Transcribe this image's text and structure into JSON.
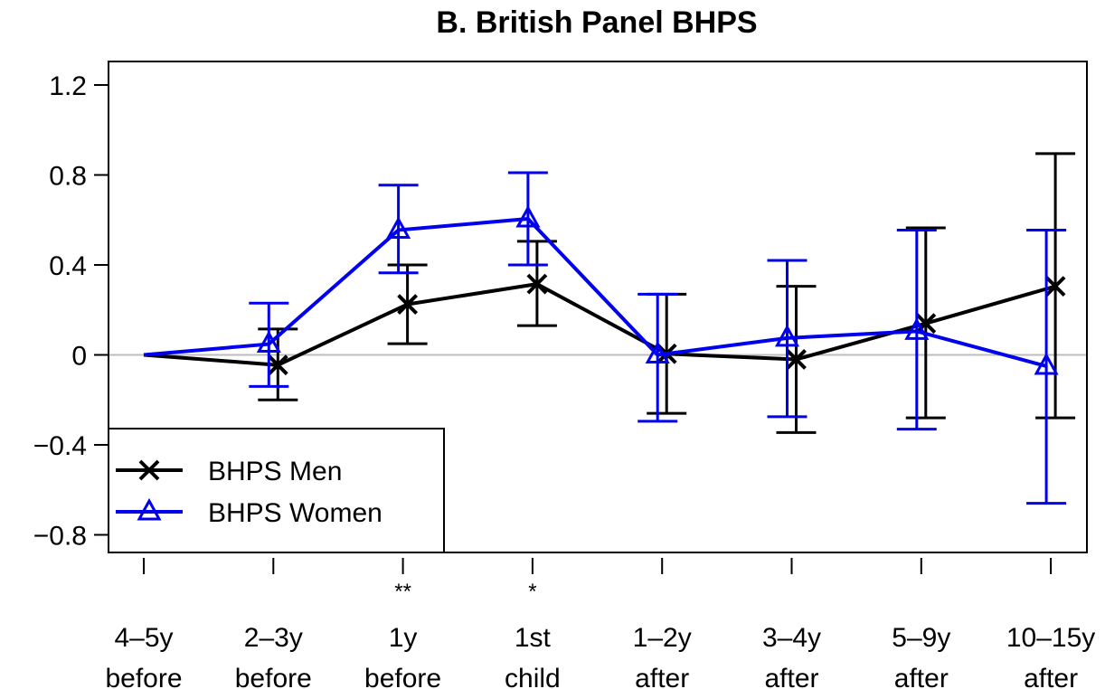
{
  "chart_data": {
    "type": "line",
    "title": "B. British Panel BHPS",
    "xlabel": "",
    "ylabel": "",
    "categories": [
      [
        "4–5y",
        "before"
      ],
      [
        "2–3y",
        "before"
      ],
      [
        "1y",
        "before"
      ],
      [
        "1st",
        "child"
      ],
      [
        "1–2y",
        "after"
      ],
      [
        "3–4y",
        "after"
      ],
      [
        "5–9y",
        "after"
      ],
      [
        "10–15y",
        "after"
      ]
    ],
    "significance": [
      "",
      "",
      "**",
      "*",
      "",
      "",
      "",
      ""
    ],
    "ylim": [
      -0.88,
      1.3
    ],
    "yticks": [
      {
        "value": 1.2,
        "label": "1.2"
      },
      {
        "value": 0.8,
        "label": "0.8"
      },
      {
        "value": 0.4,
        "label": "0.4"
      },
      {
        "value": 0,
        "label": "0"
      },
      {
        "value": -0.4,
        "label": "−0.4"
      },
      {
        "value": -0.8,
        "label": "−0.8"
      }
    ],
    "reference_line": 0,
    "grid": false,
    "legend_position": "bottom-left",
    "series": [
      {
        "name": "BHPS Men",
        "color": "#000000",
        "marker": "x",
        "values": [
          0,
          -0.045,
          0.225,
          0.315,
          0.005,
          -0.02,
          0.14,
          0.305
        ],
        "ci_low": [
          null,
          -0.2,
          0.05,
          0.13,
          -0.26,
          -0.345,
          -0.28,
          -0.28
        ],
        "ci_high": [
          null,
          0.115,
          0.4,
          0.505,
          0.27,
          0.305,
          0.565,
          0.895
        ]
      },
      {
        "name": "BHPS Women",
        "color": "#0000ee",
        "marker": "triangle",
        "values": [
          0,
          0.048,
          0.555,
          0.605,
          0.0,
          0.075,
          0.105,
          -0.05
        ],
        "ci_low": [
          null,
          -0.14,
          0.365,
          0.4,
          -0.295,
          -0.275,
          -0.33,
          -0.66
        ],
        "ci_high": [
          null,
          0.23,
          0.755,
          0.81,
          0.27,
          0.42,
          0.555,
          0.555
        ]
      }
    ]
  }
}
